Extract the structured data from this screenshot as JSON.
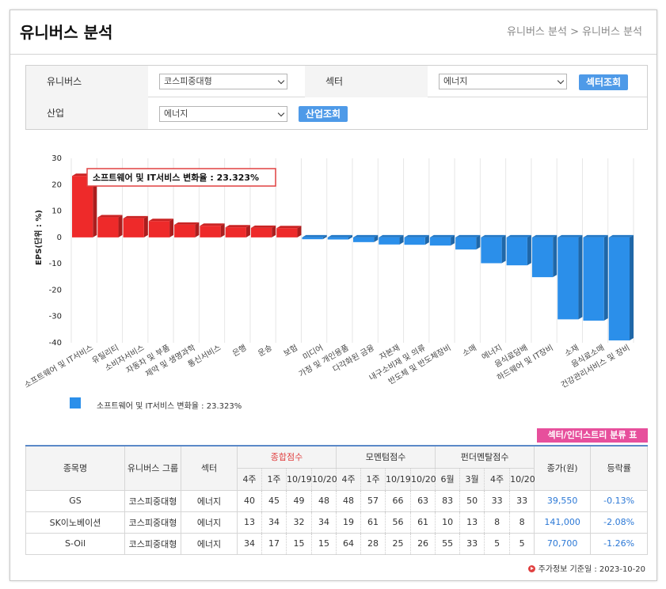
{
  "header": {
    "title": "유니버스 분석",
    "breadcrumb": "유니버스 분석 > 유니버스 분석"
  },
  "filters": {
    "universe_label": "유니버스",
    "universe_value": "코스피중대형",
    "sector_label": "섹터",
    "sector_value": "에너지",
    "sector_button": "섹터조회",
    "industry_label": "산업",
    "industry_value": "에너지",
    "industry_button": "산업조회"
  },
  "chart_data": {
    "type": "bar",
    "ylabel": "EPS(단위 : %)",
    "ylim": [
      -40,
      30
    ],
    "yticks": [
      30,
      20,
      10,
      0,
      -10,
      -20,
      -30,
      -40
    ],
    "categories": [
      "소프트웨어 및 IT서비스",
      "유틸리티",
      "소비자서비스",
      "자동차 및 부품",
      "제약 및 생명과학",
      "통신서비스",
      "은행",
      "운송",
      "보험",
      "미디어",
      "가정 및 개인용품",
      "다각화된 금융",
      "자본재",
      "내구소비재 및 의류",
      "반도체 및 반도체장비",
      "소매",
      "에너지",
      "음식료담배",
      "하드웨어 및 IT장비",
      "소재",
      "음식료소매",
      "건강관리서비스 및 장비"
    ],
    "values": [
      23.323,
      7.6,
      7.2,
      6.2,
      4.8,
      4.4,
      3.8,
      3.6,
      3.5,
      -0.7,
      -0.8,
      -1.8,
      -2.7,
      -2.8,
      -3.1,
      -4.6,
      -9.8,
      -10.6,
      -15.1,
      -31.1,
      -31.6,
      -39.1
    ],
    "tooltip": "소프트웨어 및 IT서비스 변화율 : 23.323%",
    "legend": "소프트웨어 및 IT서비스 변화율 : 23.323%",
    "colors": {
      "positive": "#ee2a2a",
      "negative": "#2b8fea"
    }
  },
  "classify_button": "섹터/인더스트리 분류 표",
  "table": {
    "headers": {
      "name": "종목명",
      "group": "유니버스 그룹",
      "sector": "섹터",
      "total": "종합점수",
      "momentum": "모멘텀점수",
      "fundamental": "펀더멘탈점수",
      "price": "종가(원)",
      "change": "등락률"
    },
    "total_sub": [
      "4주",
      "1주",
      "10/19",
      "10/20"
    ],
    "momentum_sub": [
      "4주",
      "1주",
      "10/19",
      "10/20"
    ],
    "fundamental_sub": [
      "6월",
      "3월",
      "4주",
      "10/20"
    ],
    "rows": [
      {
        "name": "GS",
        "group": "코스피중대형",
        "sector": "에너지",
        "total": [
          "40",
          "45",
          "49",
          "48"
        ],
        "momentum": [
          "48",
          "57",
          "66",
          "63"
        ],
        "fundamental": [
          "83",
          "50",
          "33",
          "33"
        ],
        "price": "39,550",
        "change": "-0.13%"
      },
      {
        "name": "SK이노베이션",
        "group": "코스피중대형",
        "sector": "에너지",
        "total": [
          "13",
          "34",
          "32",
          "34"
        ],
        "momentum": [
          "19",
          "61",
          "56",
          "61"
        ],
        "fundamental": [
          "10",
          "13",
          "8",
          "8"
        ],
        "price": "141,000",
        "change": "-2.08%"
      },
      {
        "name": "S-Oil",
        "group": "코스피중대형",
        "sector": "에너지",
        "total": [
          "34",
          "17",
          "15",
          "15"
        ],
        "momentum": [
          "64",
          "28",
          "25",
          "26"
        ],
        "fundamental": [
          "55",
          "33",
          "5",
          "5"
        ],
        "price": "70,700",
        "change": "-1.26%"
      }
    ]
  },
  "footer": "주가정보 기준일 : 2023-10-20"
}
